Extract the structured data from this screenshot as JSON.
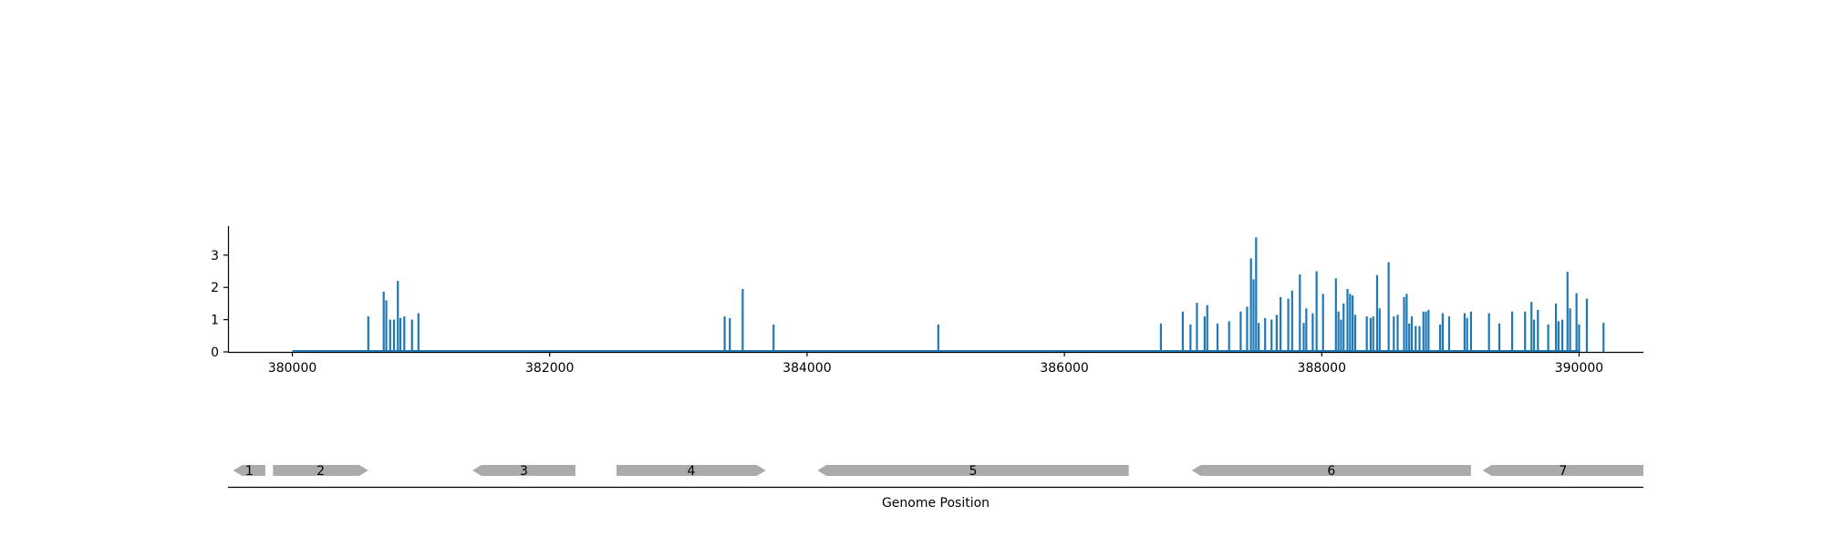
{
  "colors": {
    "signal": "#1f77b4",
    "gene": "#aaaaaa",
    "axis": "#000000"
  },
  "chart_data": [
    {
      "type": "bar",
      "title": "",
      "xlabel": "",
      "ylabel": "",
      "xlim": [
        379500,
        390500
      ],
      "ylim": [
        0,
        3.9
      ],
      "x_ticks": [
        380000,
        382000,
        384000,
        386000,
        388000,
        390000
      ],
      "x_tick_labels": [
        "380000",
        "382000",
        "384000",
        "386000",
        "388000",
        "390000"
      ],
      "y_ticks": [
        0,
        1,
        2,
        3
      ],
      "y_tick_labels": [
        "0",
        "1",
        "2",
        "3"
      ],
      "baseline": [
        380000,
        390000
      ],
      "spines": [
        "left",
        "bottom"
      ],
      "grid": false,
      "points": [
        [
          380590,
          1.1
        ],
        [
          380710,
          1.87
        ],
        [
          380730,
          1.6
        ],
        [
          380760,
          1.0
        ],
        [
          380790,
          1.0
        ],
        [
          380820,
          2.2
        ],
        [
          380840,
          1.05
        ],
        [
          380870,
          1.1
        ],
        [
          380930,
          1.0
        ],
        [
          380980,
          1.2
        ],
        [
          383360,
          1.1
        ],
        [
          383400,
          1.05
        ],
        [
          383500,
          1.95
        ],
        [
          383740,
          0.85
        ],
        [
          385020,
          0.85
        ],
        [
          386750,
          0.88
        ],
        [
          386920,
          1.25
        ],
        [
          386980,
          0.85
        ],
        [
          387030,
          1.52
        ],
        [
          387090,
          1.1
        ],
        [
          387110,
          1.45
        ],
        [
          387190,
          0.88
        ],
        [
          387280,
          0.95
        ],
        [
          387370,
          1.25
        ],
        [
          387420,
          1.4
        ],
        [
          387450,
          2.9
        ],
        [
          387470,
          2.25
        ],
        [
          387490,
          3.55
        ],
        [
          387510,
          0.9
        ],
        [
          387560,
          1.05
        ],
        [
          387610,
          1.0
        ],
        [
          387650,
          1.15
        ],
        [
          387680,
          1.7
        ],
        [
          387740,
          1.65
        ],
        [
          387770,
          1.9
        ],
        [
          387830,
          2.4
        ],
        [
          387860,
          0.9
        ],
        [
          387880,
          1.35
        ],
        [
          387930,
          1.2
        ],
        [
          387960,
          2.5
        ],
        [
          388010,
          1.8
        ],
        [
          388110,
          2.28
        ],
        [
          388130,
          1.25
        ],
        [
          388150,
          1.0
        ],
        [
          388170,
          1.5
        ],
        [
          388200,
          1.95
        ],
        [
          388220,
          1.8
        ],
        [
          388240,
          1.75
        ],
        [
          388260,
          1.15
        ],
        [
          388350,
          1.1
        ],
        [
          388380,
          1.05
        ],
        [
          388400,
          1.1
        ],
        [
          388430,
          2.38
        ],
        [
          388450,
          1.35
        ],
        [
          388520,
          2.78
        ],
        [
          388560,
          1.1
        ],
        [
          388590,
          1.15
        ],
        [
          388640,
          1.7
        ],
        [
          388660,
          1.8
        ],
        [
          388680,
          0.88
        ],
        [
          388700,
          1.1
        ],
        [
          388730,
          0.8
        ],
        [
          388760,
          0.8
        ],
        [
          388790,
          1.25
        ],
        [
          388810,
          1.25
        ],
        [
          388830,
          1.3
        ],
        [
          388920,
          0.85
        ],
        [
          388940,
          1.2
        ],
        [
          388990,
          1.1
        ],
        [
          389110,
          1.2
        ],
        [
          389130,
          1.05
        ],
        [
          389160,
          1.25
        ],
        [
          389300,
          1.2
        ],
        [
          389380,
          0.88
        ],
        [
          389480,
          1.25
        ],
        [
          389580,
          1.25
        ],
        [
          389630,
          1.55
        ],
        [
          389650,
          1.0
        ],
        [
          389680,
          1.3
        ],
        [
          389760,
          0.85
        ],
        [
          389820,
          1.5
        ],
        [
          389840,
          0.95
        ],
        [
          389870,
          1.0
        ],
        [
          389910,
          2.48
        ],
        [
          389930,
          1.35
        ],
        [
          389980,
          1.82
        ],
        [
          390000,
          0.85
        ],
        [
          390060,
          1.65
        ],
        [
          390190,
          0.9
        ]
      ]
    },
    {
      "type": "gene-track",
      "xlabel": "Genome Position",
      "xlim": [
        379500,
        390500
      ],
      "genes": [
        {
          "label": "1",
          "start": 379540,
          "end": 379790,
          "strand": "-"
        },
        {
          "label": "2",
          "start": 379850,
          "end": 380590,
          "strand": "+"
        },
        {
          "label": "3",
          "start": 381400,
          "end": 382200,
          "strand": "-"
        },
        {
          "label": "4",
          "start": 382520,
          "end": 383680,
          "strand": "+"
        },
        {
          "label": "5",
          "start": 384080,
          "end": 386500,
          "strand": "-"
        },
        {
          "label": "6",
          "start": 386990,
          "end": 389160,
          "strand": "-"
        },
        {
          "label": "7",
          "start": 389250,
          "end": 390500,
          "strand": "-"
        }
      ]
    }
  ]
}
